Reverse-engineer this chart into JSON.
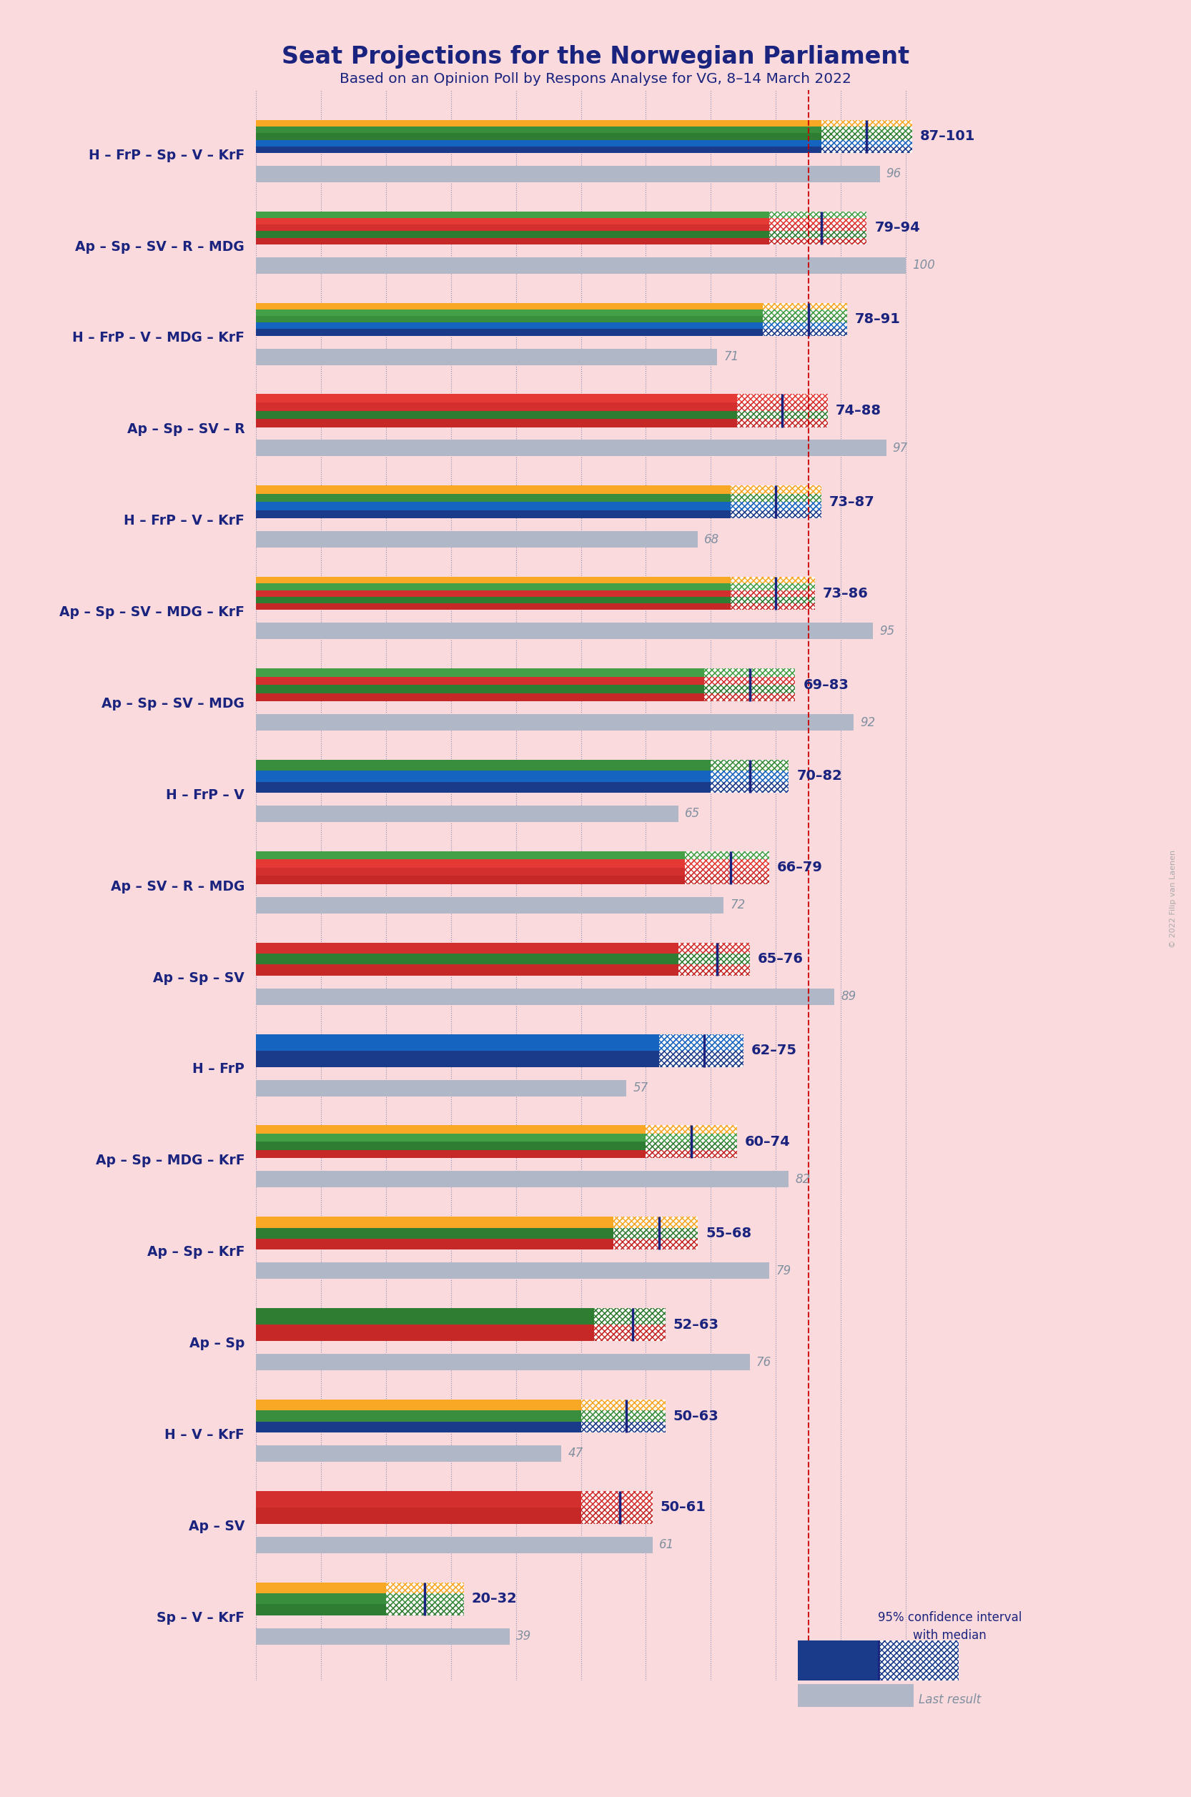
{
  "title": "Seat Projections for the Norwegian Parliament",
  "subtitle": "Based on an Opinion Poll by Respons Analyse for VG, 8–14 March 2022",
  "background_color": "#FADADD",
  "title_color": "#1a237e",
  "x_max": 110,
  "majority_line": 85,
  "coalitions": [
    {
      "name": "H – FrP – Sp – V – KrF",
      "low": 87,
      "high": 101,
      "median": 94,
      "last": 96,
      "parties": [
        "H",
        "FrP",
        "Sp",
        "V",
        "KrF"
      ]
    },
    {
      "name": "Ap – Sp – SV – R – MDG",
      "low": 79,
      "high": 94,
      "median": 87,
      "last": 100,
      "parties": [
        "Ap",
        "Sp",
        "SV",
        "R",
        "MDG"
      ]
    },
    {
      "name": "H – FrP – V – MDG – KrF",
      "low": 78,
      "high": 91,
      "median": 85,
      "last": 71,
      "parties": [
        "H",
        "FrP",
        "V",
        "MDG",
        "KrF"
      ]
    },
    {
      "name": "Ap – Sp – SV – R",
      "low": 74,
      "high": 88,
      "median": 81,
      "last": 97,
      "parties": [
        "Ap",
        "Sp",
        "SV",
        "R"
      ]
    },
    {
      "name": "H – FrP – V – KrF",
      "low": 73,
      "high": 87,
      "median": 80,
      "last": 68,
      "parties": [
        "H",
        "FrP",
        "V",
        "KrF"
      ]
    },
    {
      "name": "Ap – Sp – SV – MDG – KrF",
      "low": 73,
      "high": 86,
      "median": 80,
      "last": 95,
      "parties": [
        "Ap",
        "Sp",
        "SV",
        "MDG",
        "KrF"
      ]
    },
    {
      "name": "Ap – Sp – SV – MDG",
      "low": 69,
      "high": 83,
      "median": 76,
      "last": 92,
      "parties": [
        "Ap",
        "Sp",
        "SV",
        "MDG"
      ]
    },
    {
      "name": "H – FrP – V",
      "low": 70,
      "high": 82,
      "median": 76,
      "last": 65,
      "parties": [
        "H",
        "FrP",
        "V"
      ]
    },
    {
      "name": "Ap – SV – R – MDG",
      "low": 66,
      "high": 79,
      "median": 73,
      "last": 72,
      "parties": [
        "Ap",
        "SV",
        "R",
        "MDG"
      ]
    },
    {
      "name": "Ap – Sp – SV",
      "low": 65,
      "high": 76,
      "median": 71,
      "last": 89,
      "parties": [
        "Ap",
        "Sp",
        "SV"
      ]
    },
    {
      "name": "H – FrP",
      "low": 62,
      "high": 75,
      "median": 69,
      "last": 57,
      "parties": [
        "H",
        "FrP"
      ]
    },
    {
      "name": "Ap – Sp – MDG – KrF",
      "low": 60,
      "high": 74,
      "median": 67,
      "last": 82,
      "parties": [
        "Ap",
        "Sp",
        "MDG",
        "KrF"
      ]
    },
    {
      "name": "Ap – Sp – KrF",
      "low": 55,
      "high": 68,
      "median": 62,
      "last": 79,
      "parties": [
        "Ap",
        "Sp",
        "KrF"
      ]
    },
    {
      "name": "Ap – Sp",
      "low": 52,
      "high": 63,
      "median": 58,
      "last": 76,
      "parties": [
        "Ap",
        "Sp"
      ]
    },
    {
      "name": "H – V – KrF",
      "low": 50,
      "high": 63,
      "median": 57,
      "last": 47,
      "parties": [
        "H",
        "V",
        "KrF"
      ]
    },
    {
      "name": "Ap – SV",
      "low": 50,
      "high": 61,
      "median": 56,
      "last": 61,
      "underline": true,
      "parties": [
        "Ap",
        "SV"
      ]
    },
    {
      "name": "Sp – V – KrF",
      "low": 20,
      "high": 32,
      "median": 26,
      "last": 39,
      "parties": [
        "Sp",
        "V",
        "KrF"
      ]
    }
  ],
  "stripe_colors": {
    "H": "#1a3a8a",
    "FrP": "#1565c0",
    "Sp": "#2e7d32",
    "V": "#388e3c",
    "KrF": "#f9a825",
    "Ap": "#c62828",
    "SV": "#d32f2f",
    "R": "#e53935",
    "MDG": "#43a047"
  },
  "last_bar_color": "#b0b8c8",
  "grid_color": "#6070a0",
  "majority_color": "#cc0000",
  "label_color": "#1a237e",
  "last_label_color": "#8090a0",
  "copyright": "© 2022 Filip van Laenen"
}
